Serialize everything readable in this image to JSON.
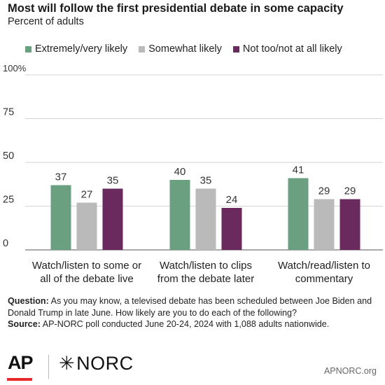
{
  "title": "Most will follow the first presidential debate in some capacity",
  "subtitle": "Percent of adults",
  "legend": [
    {
      "label": "Extremely/very likely",
      "color": "#6a9f80"
    },
    {
      "label": "Somewhat likely",
      "color": "#bababa"
    },
    {
      "label": "Not too/not at all likely",
      "color": "#6b2a5d"
    }
  ],
  "chart_data": {
    "type": "bar",
    "categories": [
      [
        "Watch/listen to some or",
        "all of the debate live"
      ],
      [
        "Watch/listen to clips",
        "from the debate later"
      ],
      [
        "Watch/read/listen to",
        "commentary"
      ]
    ],
    "series": [
      {
        "name": "Extremely/very likely",
        "color": "#6a9f80",
        "values": [
          37,
          40,
          41
        ]
      },
      {
        "name": "Somewhat likely",
        "color": "#bababa",
        "values": [
          27,
          35,
          29
        ]
      },
      {
        "name": "Not too/not at all likely",
        "color": "#6b2a5d",
        "values": [
          35,
          24,
          29
        ]
      }
    ],
    "yticks": [
      "0",
      "25",
      "50",
      "75",
      "100%"
    ],
    "ylim": [
      0,
      100
    ],
    "grid": true
  },
  "note": {
    "question_label": "Question:",
    "question_text": " As you may know, a televised debate has been scheduled between Joe Biden and Donald Trump in late June. How likely are you to do each of the following?",
    "source_label": "Source:",
    "source_text": " AP-NORC poll conducted June 20-24, 2024 with 1,088 adults nationwide."
  },
  "footer": {
    "ap_logo": "AP",
    "norc_star": "✳",
    "norc_logo": "NORC",
    "site": "APNORC.org"
  }
}
